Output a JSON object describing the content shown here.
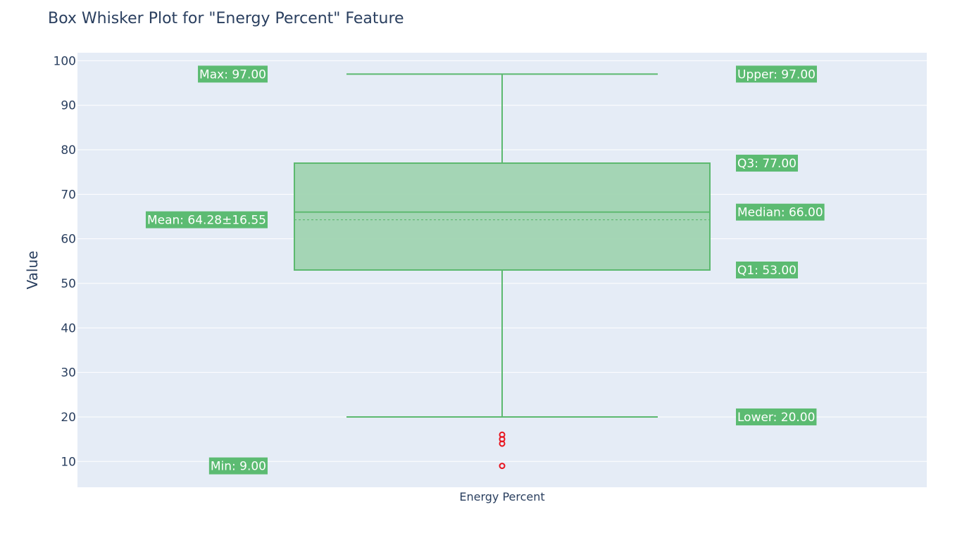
{
  "chart_data": {
    "type": "box",
    "title": "Box Whisker Plot for \"Energy Percent\" Feature",
    "xlabel": "",
    "ylabel": "Value",
    "category": "Energy Percent",
    "ylim": [
      4.2,
      101.8
    ],
    "yticks": [
      10,
      20,
      30,
      40,
      50,
      60,
      70,
      80,
      90,
      100
    ],
    "grid": true,
    "stats": {
      "max": 97,
      "upper": 97,
      "q3": 77,
      "median": 66,
      "mean": 64.28,
      "std": 16.55,
      "q1": 53,
      "lower": 20,
      "min": 9
    },
    "outliers": [
      16,
      15,
      14,
      9
    ],
    "annotations": [
      {
        "key": "max",
        "text": "Max: 97.00",
        "side": "left",
        "value": 97
      },
      {
        "key": "mean",
        "text": "Mean: 64.28±16.55",
        "side": "left",
        "value": 64.28
      },
      {
        "key": "min",
        "text": "Min: 9.00",
        "side": "left",
        "value": 9
      },
      {
        "key": "upper",
        "text": "Upper: 97.00",
        "side": "right",
        "value": 97
      },
      {
        "key": "q3",
        "text": "Q3: 77.00",
        "side": "right",
        "value": 77
      },
      {
        "key": "median",
        "text": "Median: 66.00",
        "side": "right",
        "value": 66
      },
      {
        "key": "q1",
        "text": "Q1: 53.00",
        "side": "right",
        "value": 53
      },
      {
        "key": "lower",
        "text": "Lower: 20.00",
        "side": "right",
        "value": 20
      }
    ],
    "colors": {
      "box_line": "#5cb96f",
      "box_fill": "#a0d4b1",
      "label_bg": "#5cbb72",
      "outlier": "#e8141e",
      "plot_bg": "#e5ecf6",
      "grid": "#ffffff",
      "text": "#2a3f5f"
    }
  }
}
